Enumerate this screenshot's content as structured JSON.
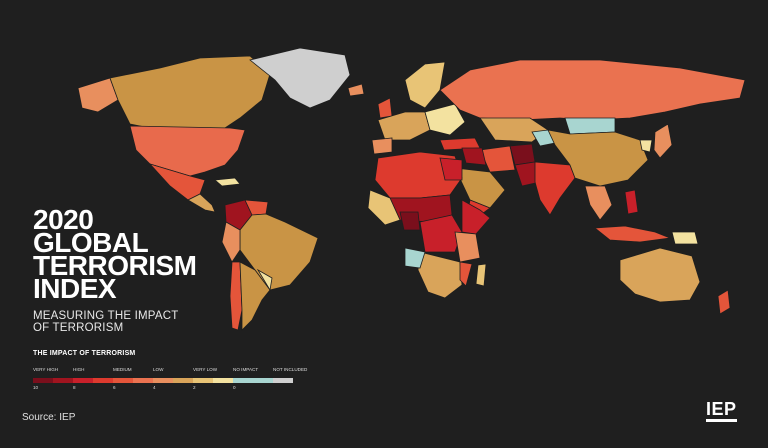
{
  "title_lines": [
    "2020",
    "GLOBAL",
    "TERRORISM",
    "INDEX"
  ],
  "subtitle_lines": [
    "MEASURING THE IMPACT",
    "OF TERRORISM"
  ],
  "legend": {
    "title": "THE IMPACT OF TERRORISM",
    "items": [
      {
        "label": "VERY HIGH",
        "tick": "10",
        "color": "#7a0f1c"
      },
      {
        "label": "",
        "tick": "",
        "color": "#a0141f"
      },
      {
        "label": "HIGH",
        "tick": "8",
        "color": "#c8202a"
      },
      {
        "label": "",
        "tick": "",
        "color": "#dd3a2e"
      },
      {
        "label": "MEDIUM",
        "tick": "6",
        "color": "#e4553a"
      },
      {
        "label": "",
        "tick": "",
        "color": "#ea7250"
      },
      {
        "label": "LOW",
        "tick": "4",
        "color": "#e88f5e"
      },
      {
        "label": "",
        "tick": "",
        "color": "#d9a45a"
      },
      {
        "label": "VERY LOW",
        "tick": "2",
        "color": "#e8c476"
      },
      {
        "label": "",
        "tick": "",
        "color": "#f3e2a0"
      },
      {
        "label": "NO IMPACT",
        "tick": "0",
        "color": "#a8d5d0"
      },
      {
        "label": "",
        "tick": "",
        "color": "#a8d5d0"
      },
      {
        "label": "NOT INCLUDED",
        "tick": "",
        "color": "#cfcfcf"
      }
    ]
  },
  "source": "Source: IEP",
  "logo": "IEP",
  "colors": {
    "background": "#1f1f1f",
    "very_high": "#7a0f1c",
    "high": "#c8202a",
    "medium": "#e4553a",
    "low": "#d9a45a",
    "very_low": "#f3e2a0",
    "no_impact": "#a8d5d0",
    "not_included": "#cfcfcf"
  }
}
